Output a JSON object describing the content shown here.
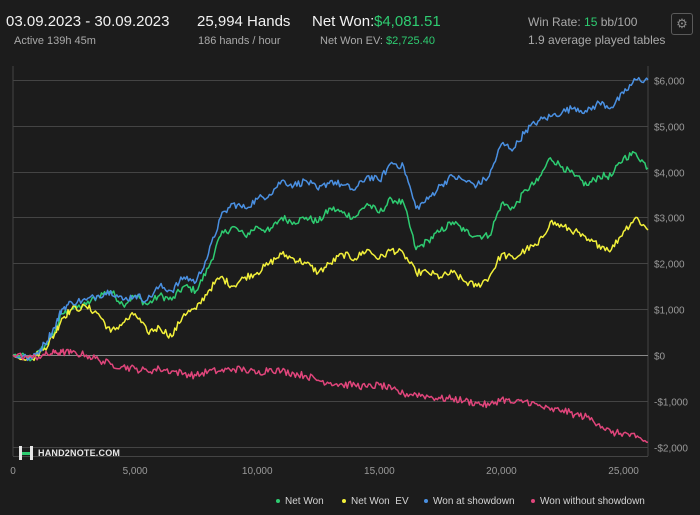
{
  "header": {
    "date_range": "03.09.2023 - 30.09.2023",
    "active": "Active 139h 45m",
    "hands": "25,994 Hands",
    "hands_per_hour": "186 hands / hour",
    "net_won_label": "Net Won:",
    "net_won_value": "$4,081.51",
    "net_won_ev_label": "Net Won  EV:",
    "net_won_ev_value": "$2,725.40",
    "win_rate_label": "Win Rate:",
    "win_rate_value": "15",
    "win_rate_unit": "bb/100",
    "tables": "1.9 average played tables",
    "settings_icon": "gear-icon"
  },
  "logo": {
    "text": "HAND2NOTE.COM"
  },
  "colors": {
    "net_won": "#2ecc71",
    "net_won_ev": "#f2f03a",
    "showdown": "#4a90e2",
    "non_showdown": "#e0457b",
    "grid": "#444444",
    "zero_line": "#8a8a8a",
    "background": "#1c1c1c"
  },
  "chart_data": {
    "type": "line",
    "xlim": [
      0,
      26000
    ],
    "ylim": [
      -2200,
      6300
    ],
    "x_ticks": [
      0,
      5000,
      10000,
      15000,
      20000,
      25000
    ],
    "x_tick_labels": [
      "0",
      "5,000",
      "10,000",
      "15,000",
      "20,000",
      "25,000"
    ],
    "y_ticks": [
      6000,
      5000,
      4000,
      3000,
      2000,
      1000,
      0,
      -1000,
      -2000
    ],
    "y_tick_labels": [
      "$6,000",
      "$5,000",
      "$4,000",
      "$3,000",
      "$2,000",
      "$1,000",
      "$0",
      "-$1,000",
      "-$2,000"
    ],
    "series": [
      {
        "name": "Net Won",
        "key": "net_won",
        "points": [
          [
            0,
            0
          ],
          [
            800,
            -80
          ],
          [
            1300,
            200
          ],
          [
            1700,
            500
          ],
          [
            2000,
            900
          ],
          [
            2400,
            1000
          ],
          [
            3000,
            1100
          ],
          [
            3500,
            1300
          ],
          [
            4000,
            1400
          ],
          [
            4500,
            1100
          ],
          [
            5000,
            1300
          ],
          [
            5500,
            1100
          ],
          [
            6000,
            1300
          ],
          [
            6500,
            1200
          ],
          [
            7000,
            1500
          ],
          [
            7500,
            1400
          ],
          [
            8000,
            1900
          ],
          [
            8500,
            2600
          ],
          [
            9000,
            2800
          ],
          [
            9500,
            2600
          ],
          [
            10000,
            2800
          ],
          [
            10500,
            2700
          ],
          [
            11000,
            3000
          ],
          [
            11500,
            2900
          ],
          [
            12000,
            3000
          ],
          [
            12500,
            2900
          ],
          [
            13000,
            3200
          ],
          [
            13500,
            3100
          ],
          [
            14000,
            3000
          ],
          [
            14500,
            3300
          ],
          [
            15000,
            3100
          ],
          [
            15500,
            3400
          ],
          [
            16000,
            3300
          ],
          [
            16500,
            2300
          ],
          [
            17000,
            2500
          ],
          [
            17500,
            2700
          ],
          [
            18000,
            2900
          ],
          [
            18500,
            2700
          ],
          [
            19000,
            2600
          ],
          [
            19500,
            2600
          ],
          [
            20000,
            3300
          ],
          [
            20500,
            3200
          ],
          [
            21000,
            3600
          ],
          [
            21500,
            3800
          ],
          [
            22000,
            4300
          ],
          [
            22500,
            4100
          ],
          [
            23000,
            3900
          ],
          [
            23500,
            3700
          ],
          [
            24000,
            3900
          ],
          [
            24500,
            3900
          ],
          [
            25000,
            4300
          ],
          [
            25500,
            4400
          ],
          [
            26000,
            4080
          ]
        ]
      },
      {
        "name": "Net Won  EV",
        "key": "net_won_ev",
        "points": [
          [
            0,
            0
          ],
          [
            800,
            -80
          ],
          [
            1300,
            150
          ],
          [
            1700,
            450
          ],
          [
            2000,
            800
          ],
          [
            2400,
            1000
          ],
          [
            3000,
            1050
          ],
          [
            3500,
            900
          ],
          [
            4000,
            500
          ],
          [
            4500,
            700
          ],
          [
            5000,
            900
          ],
          [
            5500,
            500
          ],
          [
            6000,
            600
          ],
          [
            6500,
            400
          ],
          [
            7000,
            900
          ],
          [
            7500,
            1000
          ],
          [
            8000,
            1400
          ],
          [
            8500,
            1700
          ],
          [
            9000,
            1500
          ],
          [
            9500,
            1700
          ],
          [
            10000,
            1800
          ],
          [
            10500,
            2000
          ],
          [
            11000,
            2200
          ],
          [
            11500,
            2100
          ],
          [
            12000,
            2000
          ],
          [
            12500,
            1800
          ],
          [
            13000,
            2000
          ],
          [
            13500,
            2200
          ],
          [
            14000,
            2100
          ],
          [
            14500,
            2300
          ],
          [
            15000,
            2100
          ],
          [
            15500,
            2300
          ],
          [
            16000,
            2200
          ],
          [
            16500,
            1800
          ],
          [
            17000,
            1800
          ],
          [
            17500,
            1700
          ],
          [
            18000,
            1800
          ],
          [
            18500,
            1600
          ],
          [
            19000,
            1500
          ],
          [
            19500,
            1700
          ],
          [
            20000,
            2200
          ],
          [
            20500,
            2100
          ],
          [
            21000,
            2300
          ],
          [
            21500,
            2400
          ],
          [
            22000,
            2900
          ],
          [
            22500,
            2800
          ],
          [
            23000,
            2700
          ],
          [
            23500,
            2500
          ],
          [
            24000,
            2400
          ],
          [
            24500,
            2300
          ],
          [
            25000,
            2700
          ],
          [
            25500,
            3000
          ],
          [
            26000,
            2725
          ]
        ]
      },
      {
        "name": "Won at showdown",
        "key": "showdown",
        "points": [
          [
            0,
            0
          ],
          [
            800,
            -80
          ],
          [
            1300,
            250
          ],
          [
            1700,
            600
          ],
          [
            2000,
            1000
          ],
          [
            2400,
            1150
          ],
          [
            3000,
            1200
          ],
          [
            3500,
            1300
          ],
          [
            4000,
            1400
          ],
          [
            4500,
            1200
          ],
          [
            5000,
            1300
          ],
          [
            5500,
            1200
          ],
          [
            6000,
            1500
          ],
          [
            6500,
            1400
          ],
          [
            7000,
            1700
          ],
          [
            7500,
            1600
          ],
          [
            8000,
            2200
          ],
          [
            8500,
            3000
          ],
          [
            9000,
            3300
          ],
          [
            9500,
            3200
          ],
          [
            10000,
            3400
          ],
          [
            10500,
            3500
          ],
          [
            11000,
            3800
          ],
          [
            11500,
            3700
          ],
          [
            12000,
            3800
          ],
          [
            12500,
            3600
          ],
          [
            13000,
            3800
          ],
          [
            13500,
            3700
          ],
          [
            14000,
            3600
          ],
          [
            14500,
            3900
          ],
          [
            15000,
            3800
          ],
          [
            15500,
            4200
          ],
          [
            16000,
            4100
          ],
          [
            16500,
            3200
          ],
          [
            17000,
            3400
          ],
          [
            17500,
            3700
          ],
          [
            18000,
            3900
          ],
          [
            18500,
            3800
          ],
          [
            19000,
            3700
          ],
          [
            19500,
            3900
          ],
          [
            20000,
            4600
          ],
          [
            20500,
            4500
          ],
          [
            21000,
            4900
          ],
          [
            21500,
            5100
          ],
          [
            22000,
            5200
          ],
          [
            22500,
            5300
          ],
          [
            23000,
            5400
          ],
          [
            23500,
            5300
          ],
          [
            24000,
            5500
          ],
          [
            24500,
            5400
          ],
          [
            25000,
            5700
          ],
          [
            25500,
            6000
          ],
          [
            26000,
            6000
          ]
        ]
      },
      {
        "name": "Won without showdown",
        "key": "non_showdown",
        "points": [
          [
            0,
            0
          ],
          [
            800,
            -60
          ],
          [
            1300,
            0
          ],
          [
            1700,
            50
          ],
          [
            2000,
            60
          ],
          [
            2400,
            50
          ],
          [
            3000,
            0
          ],
          [
            3500,
            -100
          ],
          [
            4000,
            -200
          ],
          [
            4500,
            -250
          ],
          [
            5000,
            -300
          ],
          [
            5500,
            -350
          ],
          [
            6000,
            -300
          ],
          [
            6500,
            -350
          ],
          [
            7000,
            -400
          ],
          [
            7500,
            -450
          ],
          [
            8000,
            -350
          ],
          [
            8500,
            -350
          ],
          [
            9000,
            -300
          ],
          [
            9500,
            -320
          ],
          [
            10000,
            -400
          ],
          [
            10500,
            -300
          ],
          [
            11000,
            -350
          ],
          [
            11500,
            -400
          ],
          [
            12000,
            -450
          ],
          [
            12500,
            -550
          ],
          [
            13000,
            -600
          ],
          [
            13500,
            -650
          ],
          [
            14000,
            -650
          ],
          [
            14500,
            -700
          ],
          [
            15000,
            -650
          ],
          [
            15500,
            -750
          ],
          [
            16000,
            -850
          ],
          [
            16500,
            -850
          ],
          [
            17000,
            -900
          ],
          [
            17500,
            -950
          ],
          [
            18000,
            -950
          ],
          [
            18500,
            -1000
          ],
          [
            19000,
            -1050
          ],
          [
            19500,
            -1100
          ],
          [
            20000,
            -950
          ],
          [
            20500,
            -1050
          ],
          [
            21000,
            -1000
          ],
          [
            21500,
            -1100
          ],
          [
            22000,
            -1200
          ],
          [
            22500,
            -1200
          ],
          [
            23000,
            -1300
          ],
          [
            23500,
            -1350
          ],
          [
            24000,
            -1500
          ],
          [
            24500,
            -1700
          ],
          [
            25000,
            -1700
          ],
          [
            25500,
            -1800
          ],
          [
            26000,
            -1900
          ]
        ]
      }
    ]
  }
}
